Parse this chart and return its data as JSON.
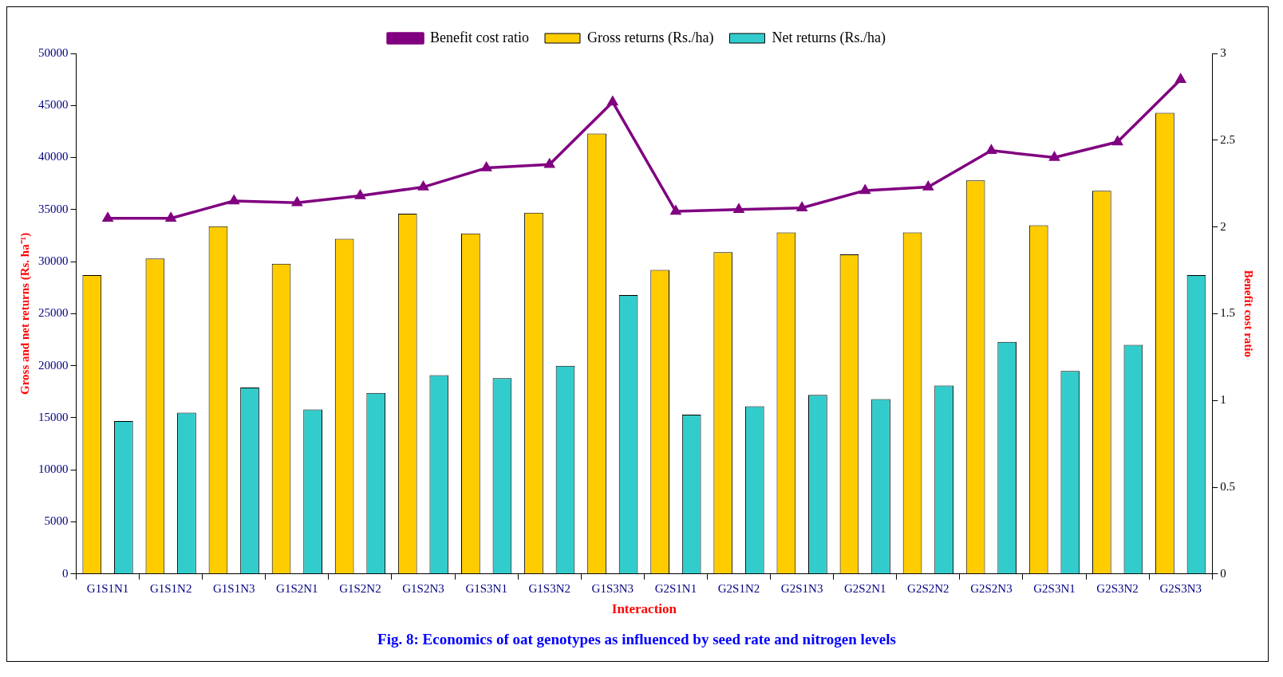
{
  "chart_data": {
    "type": "bar",
    "title": "Fig. 8: Economics of oat genotypes as influenced by seed rate and nitrogen levels",
    "xlabel": "Interaction",
    "ylabel": "Gross and net returns (Rs. ha⁻¹)",
    "y2label": "Benefit cost ratio",
    "categories": [
      "G1S1N1",
      "G1S1N2",
      "G1S1N3",
      "G1S2N1",
      "G1S2N2",
      "G1S2N3",
      "G1S3N1",
      "G1S3N2",
      "G1S3N3",
      "G2S1N1",
      "G2S1N2",
      "G2S1N3",
      "G2S2N1",
      "G2S2N2",
      "G2S2N3",
      "G2S3N1",
      "G2S3N2",
      "G2S3N3"
    ],
    "series": [
      {
        "name": "Gross returns (Rs./ha)",
        "color": "#ffcc00",
        "values": [
          28700,
          30300,
          33400,
          29800,
          32200,
          34600,
          32700,
          34700,
          42300,
          29200,
          30900,
          32800,
          30700,
          32800,
          37800,
          33500,
          36800,
          44300
        ]
      },
      {
        "name": "Net returns (Rs./ha)",
        "color": "#33cccc",
        "values": [
          14700,
          15500,
          17900,
          15800,
          17400,
          19100,
          18800,
          20000,
          26800,
          15300,
          16100,
          17200,
          16800,
          18100,
          22300,
          19500,
          22000,
          28700
        ]
      },
      {
        "name": "Benefit cost ratio",
        "type": "line",
        "axis": "y2",
        "color": "#800080",
        "marker": "triangle",
        "values": [
          2.05,
          2.05,
          2.15,
          2.14,
          2.18,
          2.23,
          2.34,
          2.36,
          2.72,
          2.09,
          2.1,
          2.11,
          2.21,
          2.23,
          2.44,
          2.4,
          2.49,
          2.85
        ]
      }
    ],
    "ylim": [
      0,
      50000
    ],
    "yticks": [
      0,
      5000,
      10000,
      15000,
      20000,
      25000,
      30000,
      35000,
      40000,
      45000,
      50000
    ],
    "y2lim": [
      0,
      3
    ],
    "y2ticks": [
      0,
      0.5,
      1,
      1.5,
      2,
      2.5,
      3
    ],
    "grid": false,
    "legend": "top"
  }
}
